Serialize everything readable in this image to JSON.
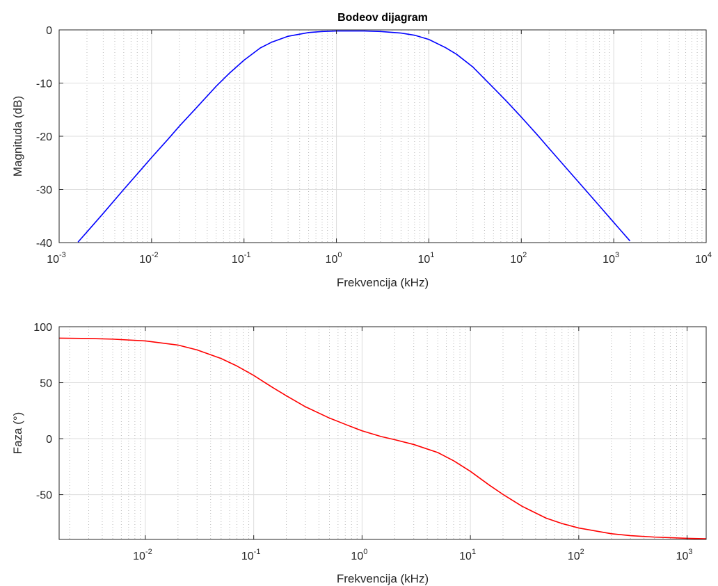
{
  "chart_data": [
    {
      "type": "line",
      "title": "Bodeov dijagram",
      "xlabel": "Frekvencija (kHz)",
      "ylabel": "Magnituda (dB)",
      "xscale": "log",
      "xlim": [
        0.001,
        10000
      ],
      "ylim": [
        -40,
        0
      ],
      "xticks": [
        0.001,
        0.01,
        0.1,
        1,
        10,
        100,
        1000,
        10000
      ],
      "xtick_labels": [
        {
          "base": "10",
          "exp": "-3"
        },
        {
          "base": "10",
          "exp": "-2"
        },
        {
          "base": "10",
          "exp": "-1"
        },
        {
          "base": "10",
          "exp": "0"
        },
        {
          "base": "10",
          "exp": "1"
        },
        {
          "base": "10",
          "exp": "2"
        },
        {
          "base": "10",
          "exp": "3"
        },
        {
          "base": "10",
          "exp": "4"
        }
      ],
      "yticks": [
        -40,
        -30,
        -20,
        -10,
        0
      ],
      "ytick_labels": [
        "-40",
        "-30",
        "-20",
        "-10",
        "0"
      ],
      "grid": true,
      "minor_grid": true,
      "series": [
        {
          "color": "#0000ff",
          "x": [
            0.0016,
            0.002,
            0.003,
            0.005,
            0.007,
            0.01,
            0.015,
            0.02,
            0.03,
            0.05,
            0.07,
            0.1,
            0.15,
            0.2,
            0.3,
            0.5,
            0.7,
            1,
            1.5,
            2,
            3,
            5,
            7,
            10,
            15,
            20,
            30,
            50,
            70,
            100,
            150,
            200,
            300,
            500,
            700,
            1000,
            1500
          ],
          "y": [
            -39.9,
            -38.0,
            -34.5,
            -30.0,
            -27.1,
            -24.0,
            -20.6,
            -18.1,
            -14.8,
            -10.6,
            -8.1,
            -5.7,
            -3.4,
            -2.3,
            -1.2,
            -0.5,
            -0.3,
            -0.2,
            -0.2,
            -0.2,
            -0.3,
            -0.6,
            -1.0,
            -1.8,
            -3.3,
            -4.6,
            -7.0,
            -10.9,
            -13.5,
            -16.4,
            -19.8,
            -22.3,
            -25.8,
            -30.2,
            -33.1,
            -36.2,
            -39.7
          ]
        }
      ]
    },
    {
      "type": "line",
      "title": "",
      "xlabel": "Frekvencija (kHz)",
      "ylabel": "Faza (°)",
      "xscale": "log",
      "xlim": [
        0.0016,
        1500
      ],
      "ylim": [
        -90,
        100
      ],
      "xticks": [
        0.01,
        0.1,
        1,
        10,
        100,
        1000
      ],
      "xtick_labels": [
        {
          "base": "10",
          "exp": "-2"
        },
        {
          "base": "10",
          "exp": "-1"
        },
        {
          "base": "10",
          "exp": "0"
        },
        {
          "base": "10",
          "exp": "1"
        },
        {
          "base": "10",
          "exp": "2"
        },
        {
          "base": "10",
          "exp": "3"
        }
      ],
      "yticks": [
        -50,
        0,
        50,
        100
      ],
      "ytick_labels": [
        "-50",
        "0",
        "50",
        "100"
      ],
      "grid": true,
      "minor_grid": true,
      "series": [
        {
          "color": "#ff0000",
          "x": [
            0.0016,
            0.003,
            0.005,
            0.01,
            0.02,
            0.03,
            0.05,
            0.07,
            0.1,
            0.15,
            0.2,
            0.3,
            0.5,
            0.7,
            1,
            1.5,
            2,
            3,
            5,
            7,
            10,
            15,
            20,
            30,
            50,
            70,
            100,
            200,
            300,
            500,
            1000,
            1500
          ],
          "y": [
            89.8,
            89.5,
            88.9,
            87.3,
            83.6,
            79.3,
            71.6,
            64.9,
            56.5,
            45.6,
            38.3,
            28.5,
            18.4,
            12.8,
            7.0,
            1.9,
            -0.9,
            -5.2,
            -12.4,
            -19.7,
            -29.2,
            -41.6,
            -49.8,
            -60.4,
            -71.0,
            -75.8,
            -79.8,
            -84.9,
            -86.6,
            -87.9,
            -89.0,
            -89.4
          ]
        }
      ]
    }
  ]
}
